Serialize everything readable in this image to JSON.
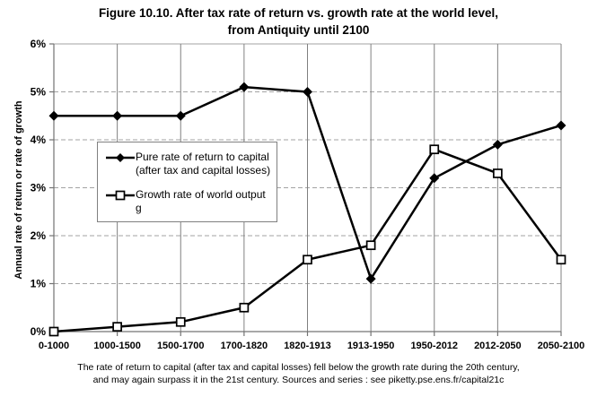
{
  "title": {
    "line1": "Figure 10.10. After tax rate of return vs. growth rate at the world level,",
    "line2": "from Antiquity until 2100"
  },
  "chart_data": {
    "type": "line",
    "categories": [
      "0-1000",
      "1000-1500",
      "1500-1700",
      "1700-1820",
      "1820-1913",
      "1913-1950",
      "1950-2012",
      "2012-2050",
      "2050-2100"
    ],
    "series": [
      {
        "name": "Pure rate of return to capital (after tax and capital losses)",
        "marker": "filled-diamond",
        "color": "#000000",
        "values": [
          4.5,
          4.5,
          4.5,
          5.1,
          5.0,
          1.1,
          3.2,
          3.9,
          4.3
        ]
      },
      {
        "name": "Growth rate of world output g",
        "marker": "open-square",
        "color": "#000000",
        "values": [
          0.0,
          0.1,
          0.2,
          0.5,
          1.5,
          1.8,
          3.8,
          3.3,
          1.5
        ]
      }
    ],
    "xlabel": "",
    "ylabel": "Annual rate of return or rate of growth",
    "ylim": [
      0,
      6
    ],
    "yticks": [
      "0%",
      "1%",
      "2%",
      "3%",
      "4%",
      "5%",
      "6%"
    ],
    "grid": true,
    "legend_position": "inside-top-left"
  },
  "legend": {
    "items": [
      {
        "line1": "Pure rate of return to capital",
        "line2": "(after tax and capital losses)"
      },
      {
        "line1": "Growth rate of world output g"
      }
    ]
  },
  "caption": {
    "line1": "The rate of return to capital (after tax and capital losses) fell below the growth rate during the 20th century,",
    "line2": "and may again surpass it in the 21st century. Sources and series : see piketty.pse.ens.fr/capital21c"
  },
  "colors": {
    "series": "#000000",
    "vertical_gridline": "#808080",
    "horizontal_gridline": "#a3a3a3",
    "axis": "#737373",
    "tick": "#737373",
    "text": "#000000",
    "background": "#ffffff",
    "legend_border": "#808080"
  }
}
